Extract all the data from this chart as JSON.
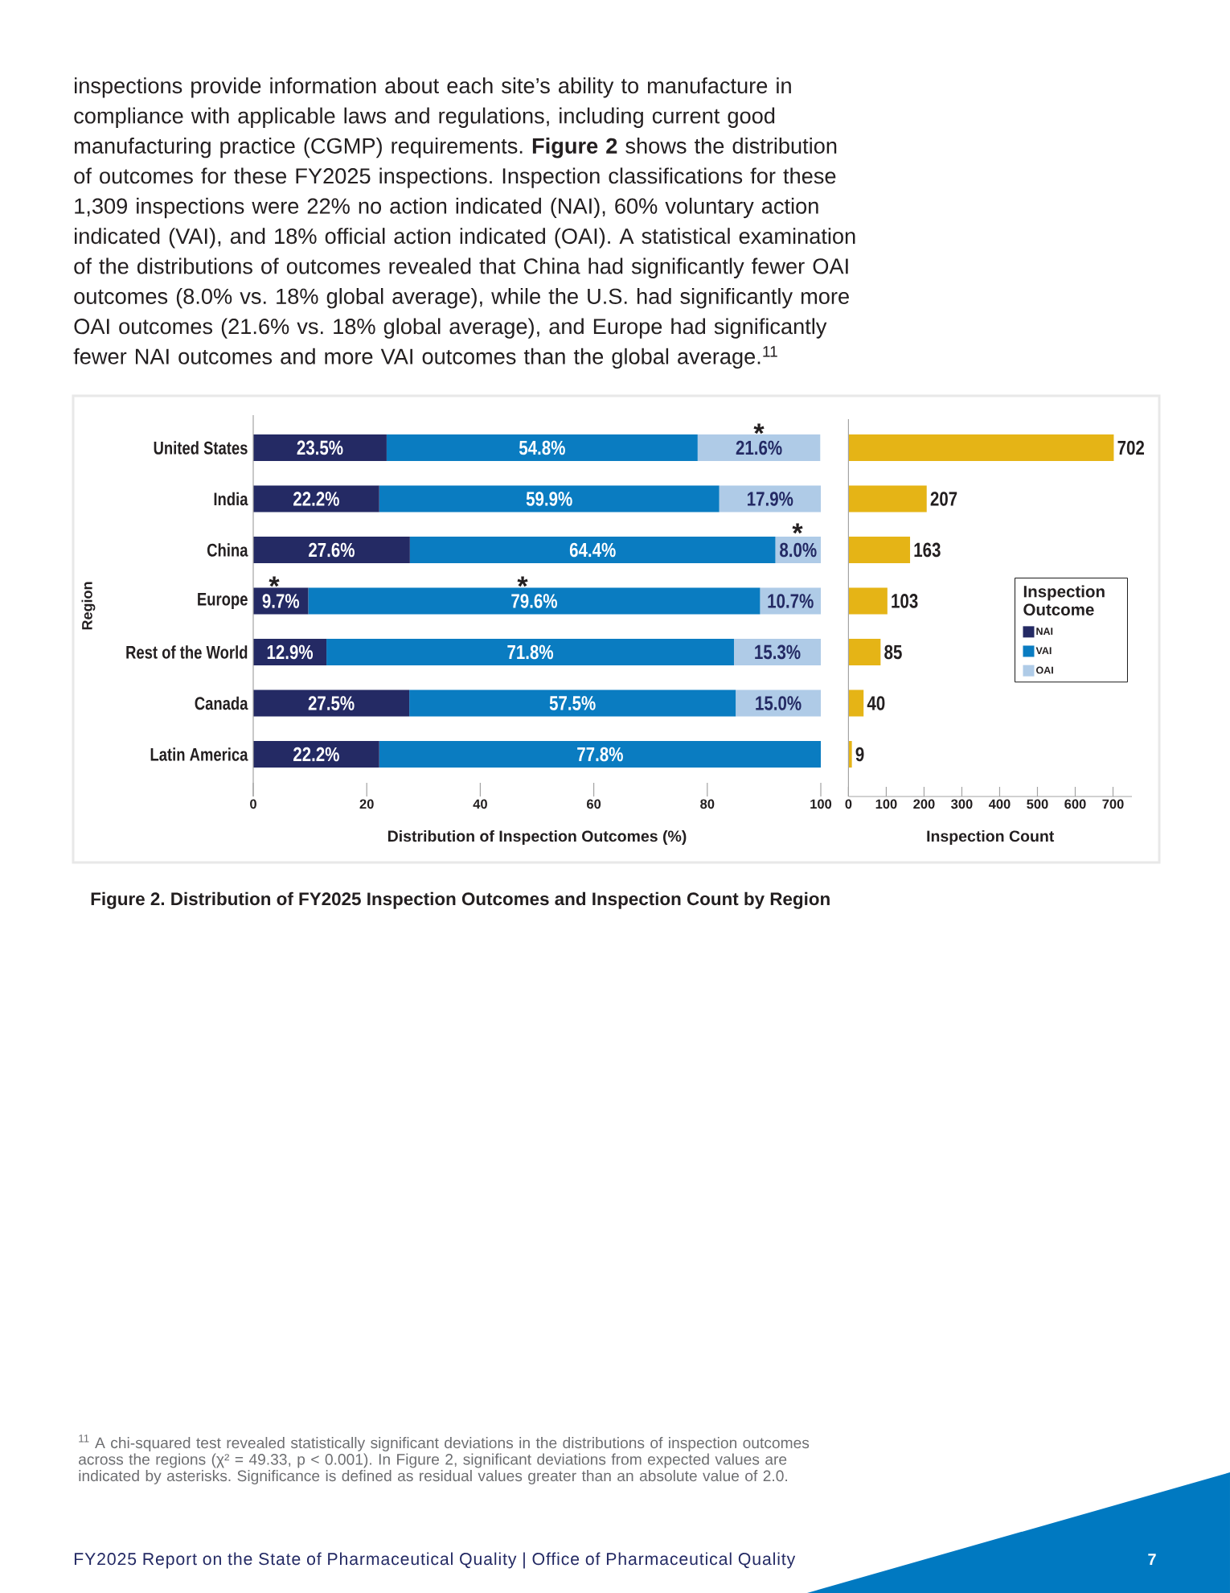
{
  "chart_data": [
    {
      "type": "bar",
      "orientation": "horizontal",
      "stacked": true,
      "title": "Figure 2. Distribution of FY2025 Inspection Outcomes and Inspection Count by Region",
      "categories": [
        "United States",
        "India",
        "China",
        "Europe",
        "Rest of the World",
        "Canada",
        "Latin America"
      ],
      "series": [
        {
          "name": "NAI",
          "color": "#242a64",
          "values": [
            23.5,
            22.2,
            27.6,
            9.7,
            12.9,
            27.5,
            22.2
          ],
          "value_labels": [
            "23.5%",
            "22.2%",
            "27.6%",
            "9.7%",
            "12.9%",
            "27.5%",
            "22.2%"
          ]
        },
        {
          "name": "VAI",
          "color": "#0a7cc1",
          "values": [
            54.8,
            59.9,
            64.4,
            79.6,
            71.8,
            57.5,
            77.8
          ],
          "value_labels": [
            "54.8%",
            "59.9%",
            "64.4%",
            "79.6%",
            "71.8%",
            "57.5%",
            "77.8%"
          ]
        },
        {
          "name": "OAI",
          "color": "#afcbe7",
          "values": [
            21.6,
            17.9,
            8.0,
            10.7,
            15.3,
            15.0,
            null
          ],
          "value_labels": [
            "21.6%",
            "17.9%",
            "8.0%",
            "10.7%",
            "15.3%",
            "15.0%",
            null
          ]
        }
      ],
      "xlim": [
        0,
        100
      ],
      "xticks": [
        0,
        20,
        40,
        60,
        80,
        100
      ],
      "xlabel": "Distribution of Inspection Outcomes (%)",
      "ylabel": "Region",
      "legend": "right",
      "legend_title": "Inspection Outcome",
      "annotations": [
        "inspections provide information about each site’s ability to manufacture in compliance with applicable laws and regulations, including current good manufacturing practice (CGMP) requirements. **Figure 2** shows the distribution of outcomes for these FY2025 inspections. Inspection classifications for these 1,309 inspections were 22% no action indicated (NAI), 60% voluntary action indicated (VAI), and 18% official action indicated (OAI). A statistical examination of the distributions of outcomes revealed that China had significantly fewer OAI outcomes (8.0% vs. 18% global average), while the U.S. had significantly more OAI outcomes (21.6% vs. 18% global average), and Europe had significantly fewer NAI outcomes and more VAI outcomes than the global average.$^{11}$",
        "*",
        "*",
        "*",
        "*",
        "$^{11}$ A chi-squared test revealed statistically significant deviations in the distributions of inspection outcomes across the regions (χ² = 49.33, p < 0.001). In Figure 2, significant deviations from expected values are indicated by asterisks. Significance is defined as residual values greater than an absolute value of 2.0.",
        "FY2025 Report on the State of Pharmaceutical Quality | Office of Pharmaceutical Quality",
        "7"
      ]
    },
    {
      "type": "bar",
      "orientation": "horizontal",
      "categories": [
        null,
        null,
        null,
        null,
        null,
        null,
        null
      ],
      "values": [
        702,
        207,
        163,
        103,
        85,
        40,
        9
      ],
      "color": "#e5b416",
      "data_labels": true,
      "xlim": [
        0,
        750
      ],
      "xticks": [
        0,
        100,
        200,
        300,
        400,
        500,
        600,
        700
      ],
      "xlabel": "Inspection Count",
      "tick_labels": "x"
    }
  ]
}
